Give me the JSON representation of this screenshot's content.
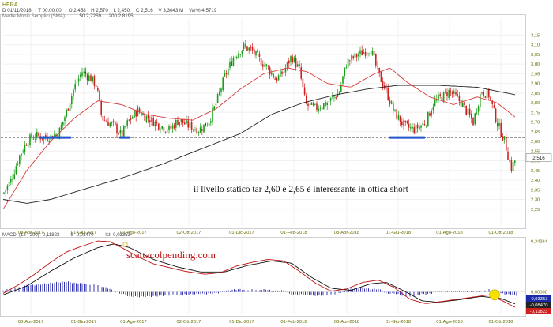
{
  "header": {
    "symbol": "HERA",
    "ohlc_line": [
      {
        "key": "D",
        "value": "01/11/2018"
      },
      {
        "key": "T",
        "value": "00.00.00"
      },
      {
        "key": "O",
        "value": "2,458"
      },
      {
        "key": "H",
        "value": "2,570"
      },
      {
        "key": "L",
        "value": "2,450"
      },
      {
        "key": "C",
        "value": "2,516"
      },
      {
        "key": "V",
        "value": "3,3043 M"
      },
      {
        "key": "Var%",
        "value": "4,5719"
      }
    ],
    "ma_line": [
      {
        "key": "Medie Mobili Semplici (SMA)",
        "value": ""
      },
      {
        "key": "50",
        "value": "2,7259"
      },
      {
        "key": "200",
        "value": "2,8195"
      }
    ]
  },
  "colors": {
    "up_candle": "#1a9e1a",
    "down_candle": "#d02020",
    "sma50": "#d83a3a",
    "sma200": "#222222",
    "macd_line": "#c01010",
    "signal_line": "#111111",
    "histogram": "#3535b0",
    "support_line": "#2255cc",
    "axis_label": "#6a6a00",
    "highlight": "#f5e000"
  },
  "chart_data": [
    {
      "type": "line",
      "panel": "price",
      "ylim": [
        2.2,
        3.18
      ],
      "yticks": [
        "3,15",
        "3,10",
        "3,05",
        "3,00",
        "2,95",
        "2,90",
        "2,85",
        "2,80",
        "2,75",
        "2,70",
        "2,65",
        "2,60",
        "2,55",
        "2,50",
        "2,45",
        "2,40",
        "2,35",
        "2,30",
        "2,25"
      ],
      "xticks": [
        "03-Apr-2017",
        "01-Giu-2017",
        "01-Ago-2017",
        "02-Ott-2017",
        "01-Dic-2017",
        "01-Feb-2018",
        "03-Apr-2018",
        "01-Giu-2018",
        "01-Ago-2018",
        "01-Ott-2018"
      ],
      "last_price_label": "2,516",
      "support_level": 2.62,
      "support_segments": [
        {
          "from": "01-Mag-2017",
          "to": "22-Mag-2017"
        },
        {
          "from": "02-Ago-2017",
          "to": "09-Ago-2017"
        },
        {
          "from": "29-Mag-2018",
          "to": "27-Giu-2018"
        }
      ],
      "annotation": "il livello statico tar 2,60 e 2,65 è interessante in ottica short",
      "series": [
        {
          "key": "close",
          "points": [
            [
              0,
              2.33
            ],
            [
              10,
              2.4
            ],
            [
              20,
              2.52
            ],
            [
              30,
              2.6
            ],
            [
              40,
              2.63
            ],
            [
              55,
              2.62
            ],
            [
              70,
              2.64
            ],
            [
              80,
              2.75
            ],
            [
              90,
              2.88
            ],
            [
              100,
              2.96
            ],
            [
              110,
              2.93
            ],
            [
              118,
              2.89
            ],
            [
              125,
              2.72
            ],
            [
              140,
              2.68
            ],
            [
              150,
              2.63
            ],
            [
              158,
              2.7
            ],
            [
              170,
              2.76
            ],
            [
              180,
              2.73
            ],
            [
              195,
              2.69
            ],
            [
              210,
              2.66
            ],
            [
              222,
              2.71
            ],
            [
              235,
              2.68
            ],
            [
              248,
              2.66
            ],
            [
              260,
              2.7
            ],
            [
              270,
              2.8
            ],
            [
              280,
              2.93
            ],
            [
              292,
              3.04
            ],
            [
              305,
              3.09
            ],
            [
              315,
              3.07
            ],
            [
              325,
              3.02
            ],
            [
              335,
              2.98
            ],
            [
              345,
              2.92
            ],
            [
              355,
              2.96
            ],
            [
              365,
              3.04
            ],
            [
              375,
              2.97
            ],
            [
              383,
              2.79
            ],
            [
              395,
              2.77
            ],
            [
              410,
              2.8
            ],
            [
              425,
              2.85
            ],
            [
              435,
              3.01
            ],
            [
              450,
              3.05
            ],
            [
              465,
              3.08
            ],
            [
              475,
              2.95
            ],
            [
              485,
              2.86
            ],
            [
              495,
              2.75
            ],
            [
              508,
              2.68
            ],
            [
              520,
              2.66
            ],
            [
              535,
              2.7
            ],
            [
              545,
              2.8
            ],
            [
              555,
              2.83
            ],
            [
              565,
              2.86
            ],
            [
              580,
              2.8
            ],
            [
              595,
              2.7
            ],
            [
              605,
              2.86
            ],
            [
              615,
              2.84
            ],
            [
              625,
              2.7
            ],
            [
              635,
              2.6
            ],
            [
              643,
              2.46
            ],
            [
              650,
              2.52
            ]
          ]
        },
        {
          "key": "sma50",
          "points": [
            [
              0,
              2.25
            ],
            [
              30,
              2.45
            ],
            [
              60,
              2.6
            ],
            [
              90,
              2.72
            ],
            [
              120,
              2.81
            ],
            [
              150,
              2.79
            ],
            [
              180,
              2.74
            ],
            [
              210,
              2.72
            ],
            [
              240,
              2.71
            ],
            [
              270,
              2.77
            ],
            [
              300,
              2.87
            ],
            [
              330,
              2.95
            ],
            [
              360,
              2.98
            ],
            [
              385,
              2.96
            ],
            [
              410,
              2.9
            ],
            [
              440,
              2.88
            ],
            [
              470,
              2.95
            ],
            [
              490,
              2.98
            ],
            [
              510,
              2.91
            ],
            [
              540,
              2.83
            ],
            [
              570,
              2.79
            ],
            [
              600,
              2.83
            ],
            [
              625,
              2.8
            ],
            [
              650,
              2.72
            ]
          ]
        },
        {
          "key": "sma200",
          "points": [
            [
              0,
              2.3
            ],
            [
              30,
              2.28
            ],
            [
              60,
              2.3
            ],
            [
              100,
              2.35
            ],
            [
              150,
              2.41
            ],
            [
              200,
              2.48
            ],
            [
              250,
              2.56
            ],
            [
              300,
              2.64
            ],
            [
              340,
              2.74
            ],
            [
              380,
              2.8
            ],
            [
              420,
              2.84
            ],
            [
              460,
              2.87
            ],
            [
              500,
              2.89
            ],
            [
              550,
              2.89
            ],
            [
              600,
              2.88
            ],
            [
              650,
              2.84
            ]
          ]
        }
      ]
    },
    {
      "type": "line",
      "panel": "macd",
      "title": "MACD",
      "params": "(12 , 200)",
      "values_line": [
        {
          "key": "",
          "value": "-0,11823"
        },
        {
          "key": "S",
          "value": "-0,08470"
        },
        {
          "key": "Ist",
          "value": "-0,03353"
        }
      ],
      "ylim": [
        -0.12,
        0.34
      ],
      "yticks": [
        "0,34264",
        "0,00000"
      ],
      "value_badges": [
        {
          "label": "-0,03353",
          "color": "#1a2aa8",
          "value": -0.03353
        },
        {
          "label": "-0,08470",
          "color": "#222222",
          "value": -0.0847
        },
        {
          "label": "-0,11823",
          "color": "#d02020",
          "value": -0.11823
        }
      ],
      "xticks": [
        "03-Apr-2017",
        "01-Giu-2017",
        "01-Ago-2017",
        "02-Ott-2017",
        "01-Dic-2017",
        "01-Feb-2018",
        "03-Apr-2018",
        "01-Giu-2018",
        "01-Ago-2018",
        "01-Ott-2018"
      ],
      "watermark": "scattacolpending.com",
      "series": [
        {
          "key": "macd",
          "points": [
            [
              0,
              -0.01
            ],
            [
              20,
              0.05
            ],
            [
              40,
              0.12
            ],
            [
              60,
              0.2
            ],
            [
              80,
              0.27
            ],
            [
              100,
              0.31
            ],
            [
              120,
              0.345
            ],
            [
              135,
              0.34
            ],
            [
              150,
              0.3
            ],
            [
              170,
              0.24
            ],
            [
              190,
              0.19
            ],
            [
              210,
              0.165
            ],
            [
              230,
              0.14
            ],
            [
              255,
              0.12
            ],
            [
              275,
              0.13
            ],
            [
              295,
              0.175
            ],
            [
              315,
              0.2
            ],
            [
              335,
              0.22
            ],
            [
              355,
              0.21
            ],
            [
              375,
              0.14
            ],
            [
              395,
              0.06
            ],
            [
              415,
              0.005
            ],
            [
              435,
              0.02
            ],
            [
              455,
              0.065
            ],
            [
              475,
              0.08
            ],
            [
              495,
              0.03
            ],
            [
              515,
              -0.05
            ],
            [
              535,
              -0.08
            ],
            [
              555,
              -0.065
            ],
            [
              575,
              -0.05
            ],
            [
              595,
              -0.035
            ],
            [
              615,
              -0.02
            ],
            [
              632,
              -0.06
            ],
            [
              650,
              -0.11
            ]
          ]
        },
        {
          "key": "signal",
          "points": [
            [
              0,
              -0.02
            ],
            [
              30,
              0.04
            ],
            [
              60,
              0.14
            ],
            [
              90,
              0.23
            ],
            [
              120,
              0.3
            ],
            [
              140,
              0.325
            ],
            [
              160,
              0.3
            ],
            [
              190,
              0.22
            ],
            [
              220,
              0.17
            ],
            [
              250,
              0.135
            ],
            [
              280,
              0.135
            ],
            [
              310,
              0.18
            ],
            [
              340,
              0.21
            ],
            [
              365,
              0.195
            ],
            [
              390,
              0.1
            ],
            [
              415,
              0.025
            ],
            [
              440,
              0.01
            ],
            [
              465,
              0.055
            ],
            [
              485,
              0.065
            ],
            [
              510,
              0.0
            ],
            [
              530,
              -0.06
            ],
            [
              550,
              -0.07
            ],
            [
              575,
              -0.055
            ],
            [
              605,
              -0.03
            ],
            [
              630,
              -0.045
            ],
            [
              650,
              -0.085
            ]
          ]
        }
      ]
    }
  ]
}
